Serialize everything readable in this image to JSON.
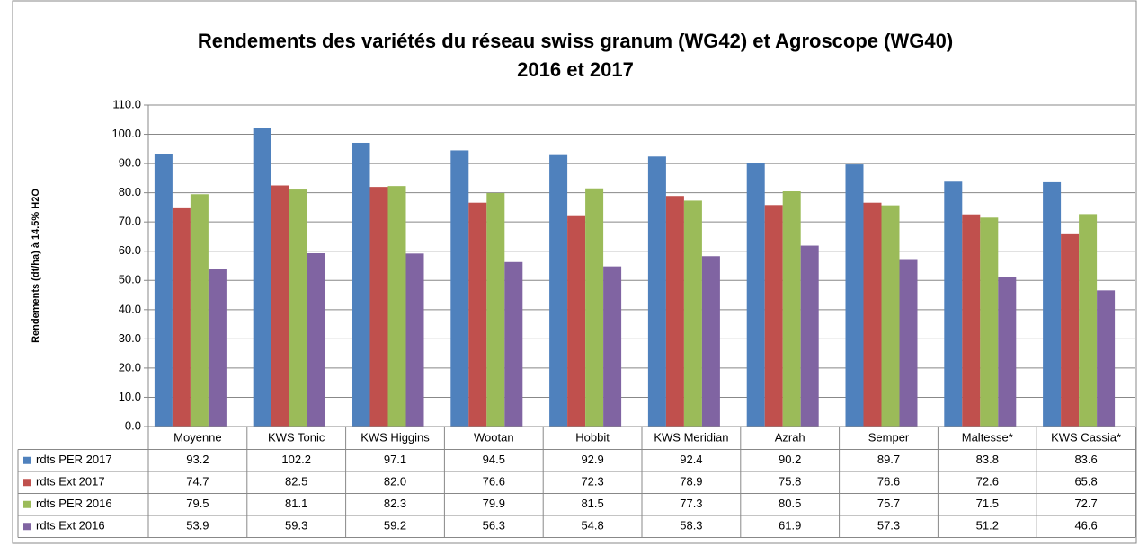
{
  "chart_data": {
    "type": "bar",
    "title": "Rendements des variétés du réseau swiss granum (WG42) et Agroscope (WG40)",
    "subtitle": "2016 et 2017",
    "y_label": "Rendements (dt/ha) à 14.5% H2O",
    "categories": [
      "Moyenne",
      "KWS Tonic",
      "KWS Higgins",
      "Wootan",
      "Hobbit",
      "KWS Meridian",
      "Azrah",
      "Semper",
      "Maltesse*",
      "KWS Cassia*"
    ],
    "series": [
      {
        "name": "rdts PER 2017",
        "color": "#4f81bd",
        "values": [
          93.2,
          102.2,
          97.1,
          94.5,
          92.9,
          92.4,
          90.2,
          89.7,
          83.8,
          83.6
        ],
        "value_labels": [
          "93.2",
          "102.2",
          "97.1",
          "94.5",
          "92.9",
          "92.4",
          "90.2",
          "89.7",
          "83.8",
          "83.6"
        ]
      },
      {
        "name": "rdts Ext 2017",
        "color": "#c0504d",
        "values": [
          74.7,
          82.5,
          82.0,
          76.6,
          72.3,
          78.9,
          75.8,
          76.6,
          72.6,
          65.8
        ],
        "value_labels": [
          "74.7",
          "82.5",
          "82.0",
          "76.6",
          "72.3",
          "78.9",
          "75.8",
          "76.6",
          "72.6",
          "65.8"
        ]
      },
      {
        "name": "rdts PER 2016",
        "color": "#9bbb59",
        "values": [
          79.5,
          81.1,
          82.3,
          79.9,
          81.5,
          77.3,
          80.5,
          75.7,
          71.5,
          72.7
        ],
        "value_labels": [
          "79.5",
          "81.1",
          "82.3",
          "79.9",
          "81.5",
          "77.3",
          "80.5",
          "75.7",
          "71.5",
          "72.7"
        ]
      },
      {
        "name": "rdts Ext 2016",
        "color": "#8064a2",
        "values": [
          53.9,
          59.3,
          59.2,
          56.3,
          54.8,
          58.3,
          61.9,
          57.3,
          51.2,
          46.6
        ],
        "value_labels": [
          "53.9",
          "59.3",
          "59.2",
          "56.3",
          "54.8",
          "58.3",
          "61.9",
          "57.3",
          "51.2",
          "46.6"
        ]
      }
    ],
    "ylim": [
      0,
      110
    ],
    "yticks": [
      {
        "value": 0,
        "label": "0.0"
      },
      {
        "value": 10,
        "label": "10.0"
      },
      {
        "value": 20,
        "label": "20.0"
      },
      {
        "value": 30,
        "label": "30.0"
      },
      {
        "value": 40,
        "label": "40.0"
      },
      {
        "value": 50,
        "label": "50.0"
      },
      {
        "value": 60,
        "label": "60.0"
      },
      {
        "value": 70,
        "label": "70.0"
      },
      {
        "value": 80,
        "label": "80.0"
      },
      {
        "value": 90,
        "label": "90.0"
      },
      {
        "value": 100,
        "label": "100.0"
      },
      {
        "value": 110,
        "label": "110.0"
      }
    ],
    "grid": true
  }
}
